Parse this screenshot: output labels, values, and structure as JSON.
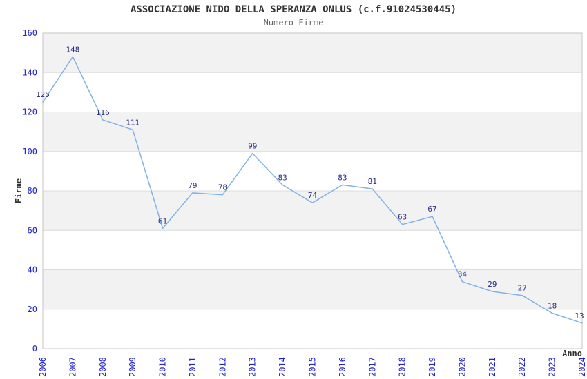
{
  "figure": {
    "title": "ASSOCIAZIONE NIDO DELLA SPERANZA ONLUS (c.f.91024530445)",
    "subtitle": "Numero Firme"
  },
  "chart_data": {
    "type": "line",
    "title": "ASSOCIAZIONE NIDO DELLA SPERANZA ONLUS (c.f.91024530445)",
    "subtitle": "Numero Firme",
    "xlabel": "Anno",
    "ylabel": "Firme",
    "categories": [
      "2006",
      "2007",
      "2008",
      "2009",
      "2010",
      "2011",
      "2012",
      "2013",
      "2014",
      "2015",
      "2016",
      "2017",
      "2018",
      "2019",
      "2020",
      "2021",
      "2022",
      "2023",
      "2024"
    ],
    "values": [
      125,
      148,
      116,
      111,
      61,
      79,
      78,
      99,
      83,
      74,
      83,
      81,
      63,
      67,
      34,
      29,
      27,
      18,
      13
    ],
    "ylim": [
      0,
      160
    ],
    "ytick_step": 20,
    "grid": true,
    "banded_background": true,
    "legend": "none",
    "data_labels": true,
    "colors": {
      "line": "#7fb2e5",
      "data_label": "#2b2b80",
      "tick_label": "#2323cc",
      "axis_title": "#333333",
      "band_fill": "#f2f2f2",
      "gridline": "#dcdcdc",
      "plot_border": "#c6c6c6",
      "title": "#333333",
      "subtitle": "#666666",
      "background": "#ffffff"
    }
  }
}
